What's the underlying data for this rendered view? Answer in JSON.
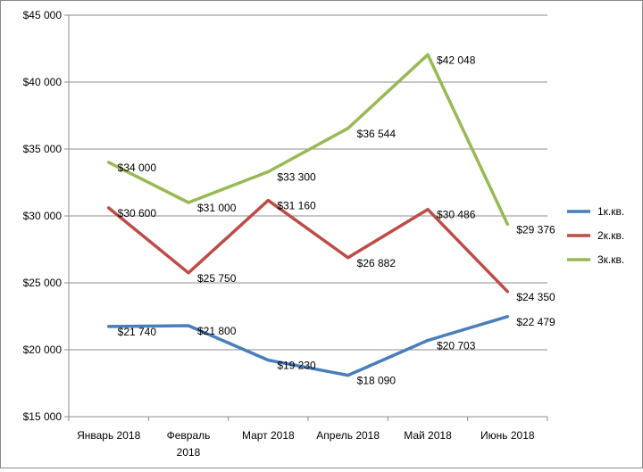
{
  "chart_data": {
    "type": "line",
    "title": "",
    "xlabel": "",
    "ylabel": "",
    "categories": [
      [
        "Январь 2018"
      ],
      [
        "Февраль",
        "2018"
      ],
      [
        "Март 2018"
      ],
      [
        "Апрель 2018"
      ],
      [
        "Май 2018"
      ],
      [
        "Июнь 2018"
      ]
    ],
    "ylim": [
      15000,
      45000
    ],
    "yticks": [
      15000,
      20000,
      25000,
      30000,
      35000,
      40000,
      45000
    ],
    "ytick_labels": [
      "$15 000",
      "$20 000",
      "$25 000",
      "$30 000",
      "$35 000",
      "$40 000",
      "$45 000"
    ],
    "grid": "horizontal",
    "legend_position": "right",
    "series": [
      {
        "name": "1к.кв.",
        "color": "#4a7ebb",
        "values": [
          21740,
          21800,
          19230,
          18090,
          20703,
          22479
        ],
        "labels": [
          "$21 740",
          "$21 800",
          "$19 230",
          "$18 090",
          "$20 703",
          "$22 479"
        ]
      },
      {
        "name": "2к.кв.",
        "color": "#be4b48",
        "values": [
          30600,
          25750,
          31160,
          26882,
          30486,
          24350
        ],
        "labels": [
          "$30 600",
          "$25 750",
          "$31 160",
          "$26 882",
          "$30 486",
          "$24 350"
        ]
      },
      {
        "name": "3к.кв.",
        "color": "#98b954",
        "values": [
          34000,
          31000,
          33300,
          36544,
          42048,
          29376
        ],
        "labels": [
          "$34 000",
          "$31 000",
          "$33 300",
          "$36 544",
          "$42 048",
          "$29 376"
        ]
      }
    ]
  }
}
